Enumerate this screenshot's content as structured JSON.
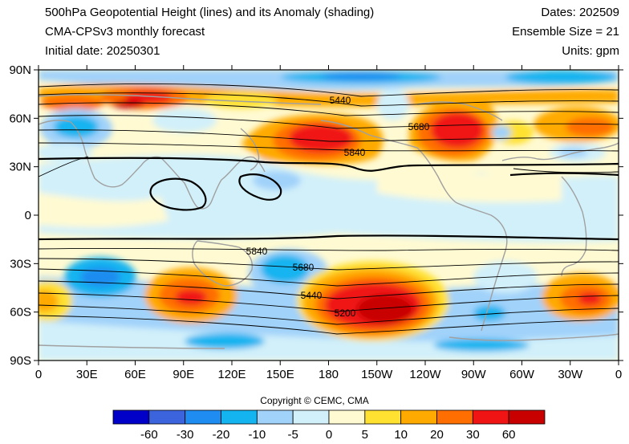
{
  "header": {
    "title": "500hPa Geopotential Height (lines) and its Anomaly (shading)",
    "model": "CMA-CPSv3 monthly forecast",
    "initial_date": "Initial date: 20250301",
    "dates": "Dates: 202509",
    "ensemble": "Ensemble Size = 21",
    "units": "Units: gpm"
  },
  "axes": {
    "lat_ticks": [
      "90N",
      "60N",
      "30N",
      "0",
      "30S",
      "60S",
      "90S"
    ],
    "lon_ticks": [
      "0",
      "30E",
      "60E",
      "90E",
      "120E",
      "150E",
      "180",
      "150W",
      "120W",
      "90W",
      "60W",
      "30W",
      "0"
    ]
  },
  "contour_labels": [
    "5440",
    "5680",
    "5840",
    "5840",
    "5680",
    "5440",
    "5200"
  ],
  "colorbar": {
    "labels": [
      "-60",
      "-30",
      "-20",
      "-10",
      "-5",
      "0",
      "5",
      "10",
      "20",
      "30",
      "60"
    ],
    "colors": [
      "#0000c8",
      "#3c64dc",
      "#1e8cf0",
      "#14b4f0",
      "#a0d2fa",
      "#d2f0fa",
      "#fffad2",
      "#ffe132",
      "#ffaa00",
      "#ff6e00",
      "#f01414",
      "#c80000"
    ]
  },
  "copyright": "Copyright © CEMC, CMA"
}
